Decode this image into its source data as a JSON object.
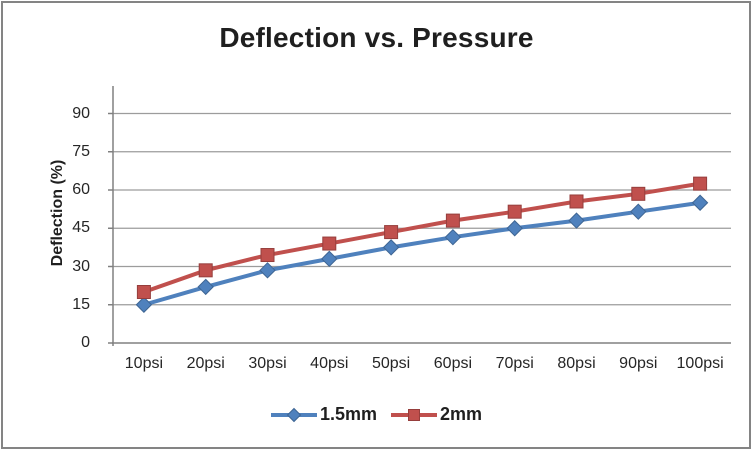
{
  "chart_data": {
    "type": "line",
    "title": "Deflection vs. Pressure",
    "xlabel": "",
    "ylabel": "Deflection (%)",
    "categories": [
      "10psi",
      "20psi",
      "30psi",
      "40psi",
      "50psi",
      "60psi",
      "70psi",
      "80psi",
      "90psi",
      "100psi"
    ],
    "series": [
      {
        "name": "1.5mm",
        "color": "#4F81BD",
        "marker": "diamond",
        "values": [
          15,
          22,
          28.5,
          33,
          37.5,
          41.5,
          45,
          48,
          51.5,
          55
        ]
      },
      {
        "name": "2mm",
        "color": "#C0504D",
        "marker": "square",
        "values": [
          20,
          28.5,
          34.5,
          39,
          43.5,
          48,
          51.5,
          55.5,
          58.5,
          62.5
        ]
      }
    ],
    "ylim": [
      0,
      100
    ],
    "yticks": [
      0,
      15,
      30,
      45,
      60,
      75,
      90
    ],
    "grid": "horizontal",
    "legend_position": "bottom",
    "colors": {
      "series1": "#4F81BD",
      "series2": "#C0504D",
      "gridline": "#9c9c9c",
      "axis": "#808080",
      "text": "#262626",
      "frame_border": "#848484"
    }
  }
}
